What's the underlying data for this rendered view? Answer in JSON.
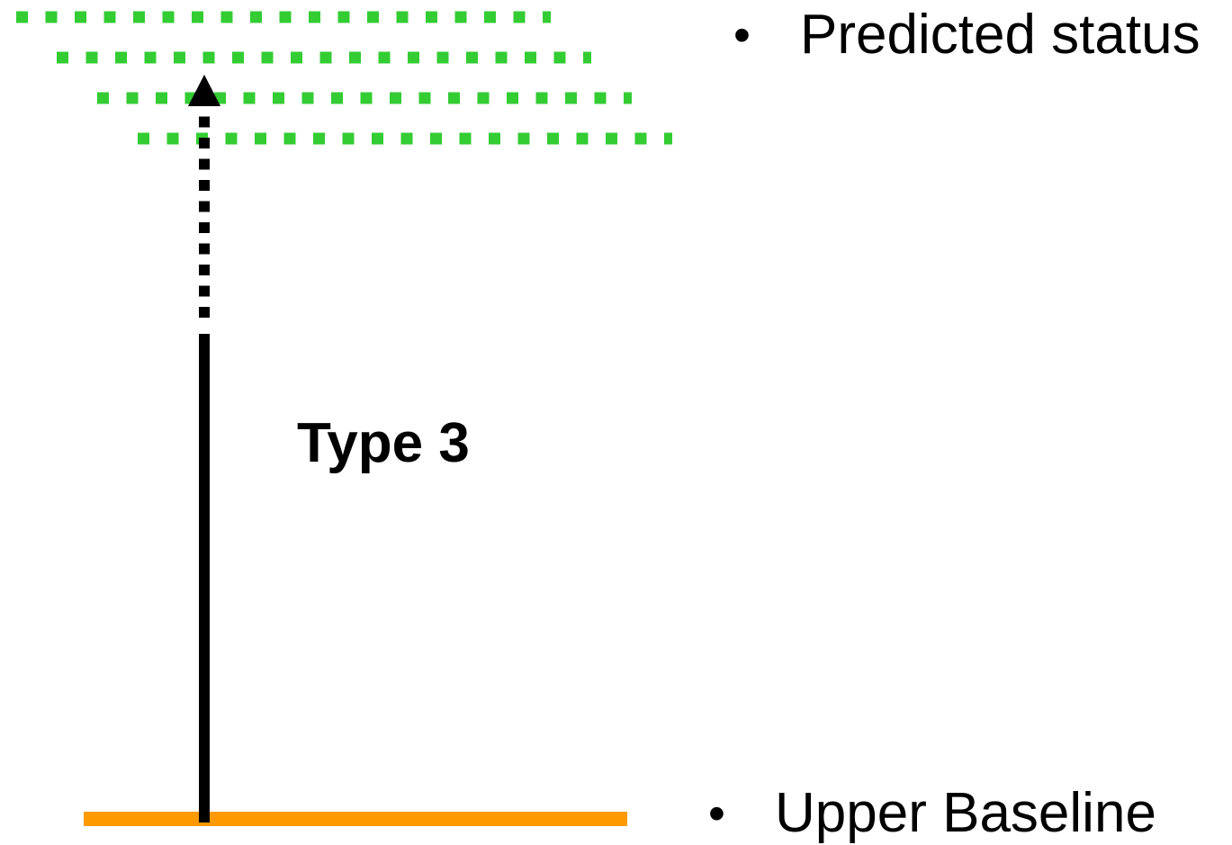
{
  "legend": {
    "predicted_label": "Predicted status",
    "baseline_label": "Upper Baseline",
    "bullet": "•"
  },
  "arrow_label": "Type 3",
  "colors": {
    "predicted": "#33cc33",
    "baseline": "#ff9900",
    "arrow": "#000000"
  }
}
